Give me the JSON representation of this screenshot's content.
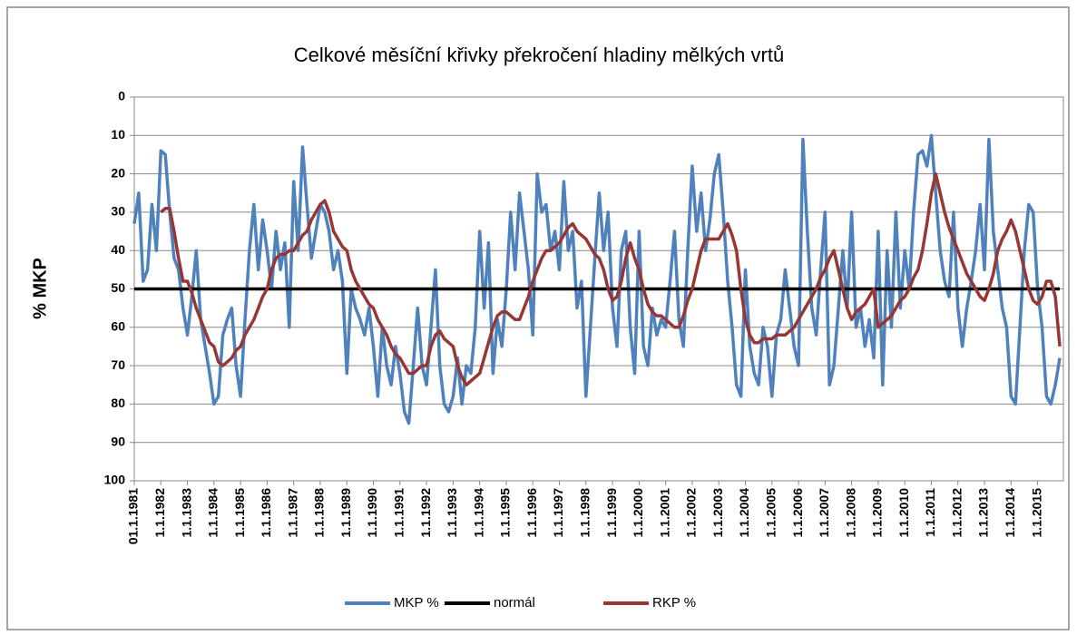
{
  "chart_data": {
    "type": "line",
    "title": "Celkové měsíční křivky překročení hladiny mělkých vrtů",
    "y_label": "% MKP",
    "ylim": [
      0,
      100
    ],
    "y_reversed": true,
    "yticks": [
      0,
      10,
      20,
      30,
      40,
      50,
      60,
      70,
      80,
      90,
      100
    ],
    "grid": true,
    "legend": "bottom",
    "categories": [
      "01.1.1981",
      null,
      null,
      null,
      null,
      null,
      "1.1.1982",
      null,
      null,
      null,
      null,
      null,
      "1.1.1983",
      null,
      null,
      null,
      null,
      null,
      "1.1.1984",
      null,
      null,
      null,
      null,
      null,
      "1.1.1985",
      null,
      null,
      null,
      null,
      null,
      "1.1.1986",
      null,
      null,
      null,
      null,
      null,
      "1.1.1987",
      null,
      null,
      null,
      null,
      null,
      "1.1.1988",
      null,
      null,
      null,
      null,
      null,
      "1.1.1989",
      null,
      null,
      null,
      null,
      null,
      "1.1.1990",
      null,
      null,
      null,
      null,
      null,
      "1.1.1991",
      null,
      null,
      null,
      null,
      null,
      "1.1.1992",
      null,
      null,
      null,
      null,
      null,
      "1.1.1993",
      null,
      null,
      null,
      null,
      null,
      "1.1.1994",
      null,
      null,
      null,
      null,
      null,
      "1.1.1995",
      null,
      null,
      null,
      null,
      null,
      "1.1.1996",
      null,
      null,
      null,
      null,
      null,
      "1.1.1997",
      null,
      null,
      null,
      null,
      null,
      "1.1.1998",
      null,
      null,
      null,
      null,
      null,
      "1.1.1999",
      null,
      null,
      null,
      null,
      null,
      "1.1.2000",
      null,
      null,
      null,
      null,
      null,
      "1.1.2001",
      null,
      null,
      null,
      null,
      null,
      "1.1.2002",
      null,
      null,
      null,
      null,
      null,
      "1.1.2003",
      null,
      null,
      null,
      null,
      null,
      "1.1.2004",
      null,
      null,
      null,
      null,
      null,
      "1.1.2005",
      null,
      null,
      null,
      null,
      null,
      "1.1.2006",
      null,
      null,
      null,
      null,
      null,
      "1.1.2007",
      null,
      null,
      null,
      null,
      null,
      "1.1.2008",
      null,
      null,
      null,
      null,
      null,
      "1.1.2009",
      null,
      null,
      null,
      null,
      null,
      "1.1.2010",
      null,
      null,
      null,
      null,
      null,
      "1.1.2011",
      null,
      null,
      null,
      null,
      null,
      "1.1.2012",
      null,
      null,
      null,
      null,
      null,
      "1.1.2013",
      null,
      null,
      null,
      null,
      null,
      "1.1.2014",
      null,
      null,
      null,
      null,
      null,
      "1.1.2015",
      null,
      null,
      null,
      null,
      null
    ],
    "series": [
      {
        "name": "MKP %",
        "color": "#4f81bd",
        "values": [
          33,
          25,
          48,
          45,
          28,
          40,
          14,
          15,
          30,
          42,
          45,
          55,
          62,
          52,
          40,
          58,
          65,
          72,
          80,
          78,
          62,
          58,
          55,
          70,
          78,
          58,
          40,
          28,
          45,
          32,
          40,
          50,
          35,
          45,
          38,
          60,
          22,
          40,
          13,
          28,
          42,
          35,
          28,
          30,
          35,
          45,
          40,
          48,
          72,
          50,
          55,
          58,
          62,
          55,
          65,
          78,
          60,
          70,
          75,
          65,
          72,
          82,
          85,
          70,
          55,
          70,
          75,
          60,
          45,
          70,
          80,
          82,
          78,
          68,
          80,
          70,
          72,
          60,
          35,
          55,
          38,
          72,
          58,
          65,
          50,
          30,
          45,
          25,
          35,
          45,
          62,
          20,
          30,
          28,
          40,
          35,
          45,
          22,
          40,
          35,
          55,
          48,
          78,
          60,
          42,
          25,
          40,
          30,
          55,
          65,
          40,
          35,
          60,
          72,
          35,
          65,
          70,
          55,
          62,
          58,
          60,
          48,
          35,
          58,
          65,
          40,
          18,
          35,
          25,
          40,
          32,
          20,
          15,
          30,
          48,
          60,
          75,
          78,
          45,
          65,
          72,
          75,
          60,
          65,
          78,
          62,
          58,
          45,
          55,
          65,
          70,
          11,
          35,
          55,
          62,
          45,
          30,
          75,
          70,
          55,
          40,
          55,
          30,
          60,
          55,
          65,
          58,
          68,
          35,
          75,
          40,
          60,
          30,
          55,
          40,
          50,
          30,
          15,
          14,
          18,
          10,
          25,
          40,
          48,
          52,
          30,
          55,
          65,
          55,
          48,
          40,
          28,
          45,
          11,
          35,
          45,
          55,
          60,
          78,
          80,
          60,
          40,
          28,
          30,
          50,
          60,
          78,
          80,
          75,
          68
        ]
      },
      {
        "name": "normál",
        "color": "#000000",
        "values": [
          50,
          50,
          50,
          50,
          50,
          50,
          50,
          50,
          50,
          50,
          50,
          50,
          50,
          50,
          50,
          50,
          50,
          50,
          50,
          50,
          50,
          50,
          50,
          50,
          50,
          50,
          50,
          50,
          50,
          50,
          50,
          50,
          50,
          50,
          50,
          50,
          50,
          50,
          50,
          50,
          50,
          50,
          50,
          50,
          50,
          50,
          50,
          50,
          50,
          50,
          50,
          50,
          50,
          50,
          50,
          50,
          50,
          50,
          50,
          50,
          50,
          50,
          50,
          50,
          50,
          50,
          50,
          50,
          50,
          50,
          50,
          50,
          50,
          50,
          50,
          50,
          50,
          50,
          50,
          50,
          50,
          50,
          50,
          50,
          50,
          50,
          50,
          50,
          50,
          50,
          50,
          50,
          50,
          50,
          50,
          50,
          50,
          50,
          50,
          50,
          50,
          50,
          50,
          50,
          50,
          50,
          50,
          50,
          50,
          50,
          50,
          50,
          50,
          50,
          50,
          50,
          50,
          50,
          50,
          50,
          50,
          50,
          50,
          50,
          50,
          50,
          50,
          50,
          50,
          50,
          50,
          50,
          50,
          50,
          50,
          50,
          50,
          50,
          50,
          50,
          50,
          50,
          50,
          50,
          50,
          50,
          50,
          50,
          50,
          50,
          50,
          50,
          50,
          50,
          50,
          50,
          50,
          50,
          50,
          50,
          50,
          50,
          50,
          50,
          50,
          50,
          50,
          50,
          50,
          50,
          50,
          50,
          50,
          50,
          50,
          50,
          50,
          50,
          50,
          50,
          50,
          50,
          50,
          50,
          50,
          50,
          50,
          50,
          50,
          50,
          50,
          50,
          50,
          50,
          50,
          50,
          50,
          50,
          50,
          50,
          50,
          50,
          50,
          50,
          50,
          50,
          50,
          50,
          50,
          50
        ]
      },
      {
        "name": "RKP %",
        "color": "#953735",
        "values": [
          null,
          null,
          null,
          null,
          null,
          null,
          30,
          29,
          29,
          35,
          42,
          48,
          48,
          51,
          55,
          58,
          61,
          64,
          65,
          69,
          70,
          69,
          68,
          66,
          65,
          62,
          60,
          58,
          55,
          52,
          50,
          45,
          42,
          41,
          41,
          40,
          40,
          38,
          36,
          35,
          32,
          30,
          28,
          27,
          30,
          35,
          37,
          39,
          40,
          45,
          48,
          50,
          52,
          54,
          55,
          58,
          60,
          62,
          65,
          67,
          68,
          70,
          72,
          72,
          71,
          70,
          70,
          65,
          62,
          61,
          63,
          64,
          65,
          70,
          73,
          75,
          74,
          73,
          72,
          68,
          64,
          60,
          57,
          56,
          56,
          57,
          58,
          58,
          55,
          52,
          48,
          45,
          42,
          40,
          40,
          39,
          38,
          36,
          34,
          33,
          35,
          36,
          37,
          39,
          41,
          42,
          45,
          50,
          53,
          52,
          48,
          42,
          38,
          42,
          45,
          50,
          54,
          56,
          57,
          57,
          58,
          59,
          60,
          60,
          57,
          53,
          50,
          45,
          40,
          37,
          37,
          37,
          37,
          35,
          33,
          36,
          40,
          50,
          58,
          62,
          64,
          64,
          63,
          63,
          63,
          62,
          62,
          62,
          61,
          60,
          58,
          56,
          54,
          52,
          50,
          47,
          45,
          42,
          40,
          45,
          50,
          55,
          58,
          56,
          55,
          54,
          52,
          50,
          60,
          59,
          58,
          57,
          55,
          53,
          52,
          50,
          47,
          45,
          40,
          33,
          25,
          20,
          25,
          30,
          34,
          37,
          40,
          43,
          46,
          48,
          50,
          52,
          53,
          50,
          46,
          40,
          37,
          35,
          32,
          35,
          40,
          45,
          50,
          53,
          54,
          52,
          48,
          48,
          52,
          65
        ]
      }
    ]
  }
}
